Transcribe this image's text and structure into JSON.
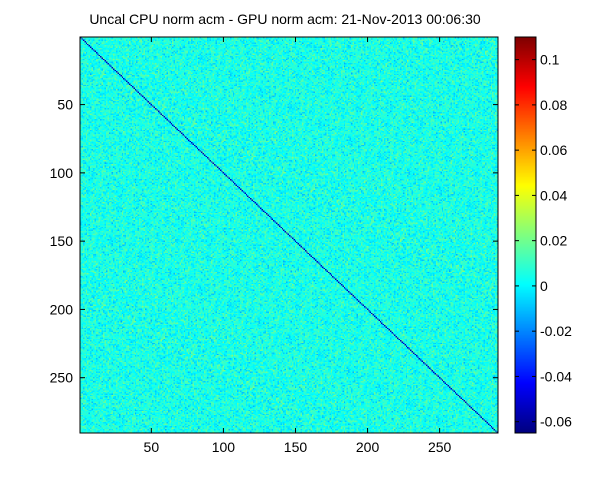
{
  "chart_data": {
    "type": "heatmap",
    "title": "Uncal CPU norm acm - GPU norm acm: 21-Nov-2013 00:06:30",
    "xlabel": "",
    "ylabel": "",
    "matrix_size": 290,
    "xlim": [
      0.5,
      290.5
    ],
    "ylim": [
      0.5,
      290.5
    ],
    "y_direction": "reverse",
    "x_ticks": [
      50,
      100,
      150,
      200,
      250
    ],
    "x_tick_labels": [
      "50",
      "100",
      "150",
      "200",
      "250"
    ],
    "y_ticks": [
      50,
      100,
      150,
      200,
      250
    ],
    "y_tick_labels": [
      "50",
      "100",
      "150",
      "200",
      "250"
    ],
    "background_value": 0,
    "off_diagonal_value_range": [
      -0.015,
      0.025
    ],
    "diagonal_value": -0.055,
    "colorbar": {
      "colormap": "jet",
      "clim": [
        -0.065,
        0.11
      ],
      "ticks": [
        0.1,
        0.08,
        0.06,
        0.04,
        0.02,
        0,
        -0.02,
        -0.04,
        -0.06
      ],
      "tick_labels": [
        "0.1",
        "0.08",
        "0.06",
        "0.04",
        "0.02",
        "0",
        "-0.02",
        "-0.04",
        "-0.06"
      ]
    },
    "grid": false
  }
}
